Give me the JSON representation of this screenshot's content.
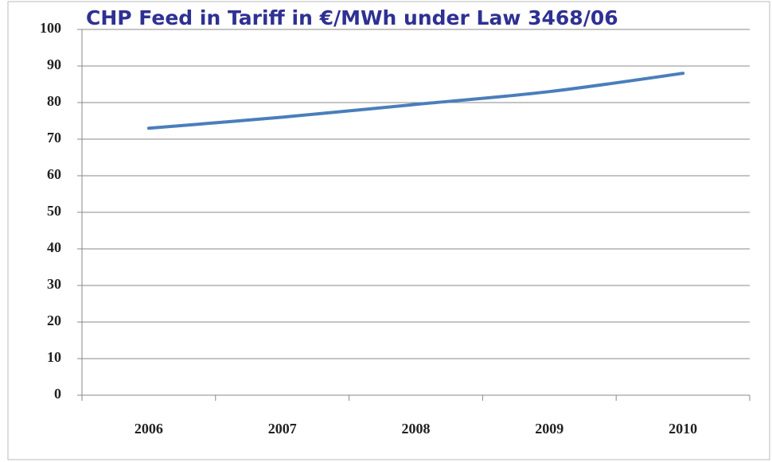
{
  "chart_data": {
    "type": "line",
    "title": "CHP Feed in Tariff in €/MWh under Law 3468/06",
    "categories": [
      "2006",
      "2007",
      "2008",
      "2009",
      "2010"
    ],
    "series": [
      {
        "name": "Feed in Tariff",
        "color": "#4a7ebb",
        "values": [
          73,
          76,
          79.5,
          83,
          88
        ]
      }
    ],
    "ylim": [
      0,
      100
    ],
    "yticks": [
      0,
      10,
      20,
      30,
      40,
      50,
      60,
      70,
      80,
      90,
      100
    ],
    "grid": true
  }
}
